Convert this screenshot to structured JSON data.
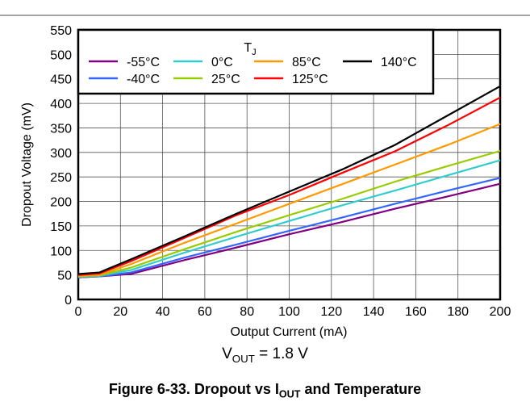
{
  "chart_data": {
    "type": "line",
    "xlabel": "Output Current (mA)",
    "ylabel": "Dropout Voltage (mV)",
    "xlim": [
      0,
      200
    ],
    "ylim": [
      0,
      550
    ],
    "xticks": [
      0,
      20,
      40,
      60,
      80,
      100,
      120,
      140,
      160,
      180,
      200
    ],
    "yticks": [
      0,
      50,
      100,
      150,
      200,
      250,
      300,
      350,
      400,
      450,
      500,
      550
    ],
    "grid": true,
    "legend": {
      "title": "T",
      "title_sub": "J",
      "placement": "top-left"
    },
    "x": [
      0,
      10,
      25,
      50,
      75,
      100,
      125,
      150,
      175,
      200
    ],
    "series": [
      {
        "name": "-55°C",
        "color": "#800080",
        "values": [
          45,
          47,
          52,
          80,
          106,
          133,
          158,
          185,
          210,
          236
        ]
      },
      {
        "name": "-40°C",
        "color": "#3366ff",
        "values": [
          45,
          47,
          55,
          85,
          112,
          140,
          167,
          195,
          222,
          248
        ]
      },
      {
        "name": "0°C",
        "color": "#33cccc",
        "values": [
          46,
          48,
          60,
          95,
          128,
          160,
          192,
          222,
          253,
          284
        ]
      },
      {
        "name": "25°C",
        "color": "#99cc00",
        "values": [
          47,
          49,
          65,
          102,
          138,
          172,
          205,
          240,
          272,
          303
        ]
      },
      {
        "name": "85°C",
        "color": "#ff9900",
        "values": [
          48,
          50,
          72,
          115,
          155,
          195,
          235,
          275,
          315,
          358
        ]
      },
      {
        "name": "125°C",
        "color": "#ff0000",
        "values": [
          50,
          53,
          78,
          125,
          172,
          213,
          258,
          302,
          355,
          412
        ]
      },
      {
        "name": "140°C",
        "color": "#000000",
        "values": [
          52,
          55,
          82,
          128,
          175,
          220,
          265,
          315,
          375,
          435
        ]
      }
    ]
  },
  "condition": {
    "prefix": "V",
    "sub": "OUT",
    "suffix": " = 1.8 V"
  },
  "caption": {
    "prefix": "Figure 6-33. Dropout vs I",
    "sub": "OUT",
    "suffix": " and Temperature"
  }
}
